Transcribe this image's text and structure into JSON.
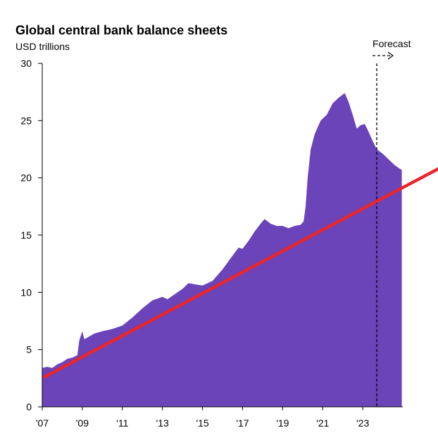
{
  "chart_data": {
    "type": "area",
    "title": "Global central bank balance sheets",
    "subtitle": "USD trillions",
    "xlabel": "",
    "ylabel": "",
    "ylim": [
      0,
      30
    ],
    "xlim": [
      2007.0,
      2025.0
    ],
    "y_ticks": [
      0,
      5,
      10,
      15,
      20,
      25,
      30
    ],
    "x_ticks": [
      {
        "x": 2007,
        "label": "'07"
      },
      {
        "x": 2009,
        "label": "'09"
      },
      {
        "x": 2011,
        "label": "'11"
      },
      {
        "x": 2013,
        "label": "'13"
      },
      {
        "x": 2015,
        "label": "'15"
      },
      {
        "x": 2017,
        "label": "'17"
      },
      {
        "x": 2019,
        "label": "'19"
      },
      {
        "x": 2021,
        "label": "'21"
      },
      {
        "x": 2023,
        "label": "'23"
      }
    ],
    "grid": false,
    "series": [
      {
        "color": "#6a44b8",
        "points": [
          [
            2007.0,
            3.4
          ],
          [
            2007.25,
            3.5
          ],
          [
            2007.5,
            3.4
          ],
          [
            2007.75,
            3.7
          ],
          [
            2008.0,
            3.9
          ],
          [
            2008.25,
            4.2
          ],
          [
            2008.5,
            4.3
          ],
          [
            2008.75,
            4.5
          ],
          [
            2008.85,
            5.8
          ],
          [
            2009.0,
            6.6
          ],
          [
            2009.1,
            5.9
          ],
          [
            2009.3,
            6.1
          ],
          [
            2009.6,
            6.4
          ],
          [
            2010.0,
            6.6
          ],
          [
            2010.5,
            6.8
          ],
          [
            2011.0,
            7.1
          ],
          [
            2011.5,
            7.8
          ],
          [
            2012.0,
            8.6
          ],
          [
            2012.5,
            9.3
          ],
          [
            2013.0,
            9.6
          ],
          [
            2013.25,
            9.4
          ],
          [
            2013.5,
            9.7
          ],
          [
            2014.0,
            10.3
          ],
          [
            2014.3,
            10.8
          ],
          [
            2014.6,
            10.7
          ],
          [
            2015.0,
            10.6
          ],
          [
            2015.5,
            11.0
          ],
          [
            2016.0,
            12.0
          ],
          [
            2016.5,
            13.2
          ],
          [
            2016.8,
            13.9
          ],
          [
            2017.0,
            13.8
          ],
          [
            2017.3,
            14.5
          ],
          [
            2017.6,
            15.3
          ],
          [
            2017.9,
            16.0
          ],
          [
            2018.1,
            16.4
          ],
          [
            2018.4,
            16.0
          ],
          [
            2018.7,
            15.8
          ],
          [
            2019.0,
            15.8
          ],
          [
            2019.3,
            15.6
          ],
          [
            2019.6,
            15.8
          ],
          [
            2019.9,
            15.9
          ],
          [
            2020.05,
            16.2
          ],
          [
            2020.15,
            17.5
          ],
          [
            2020.25,
            20.0
          ],
          [
            2020.4,
            22.5
          ],
          [
            2020.6,
            23.8
          ],
          [
            2020.9,
            25.0
          ],
          [
            2021.2,
            25.5
          ],
          [
            2021.5,
            26.5
          ],
          [
            2021.8,
            27.0
          ],
          [
            2022.1,
            27.4
          ],
          [
            2022.3,
            26.6
          ],
          [
            2022.5,
            25.5
          ],
          [
            2022.7,
            24.3
          ],
          [
            2022.9,
            24.6
          ],
          [
            2023.1,
            24.7
          ],
          [
            2023.3,
            24.0
          ],
          [
            2023.5,
            23.2
          ],
          [
            2023.7,
            22.5
          ],
          [
            2024.0,
            22.1
          ],
          [
            2024.3,
            21.6
          ],
          [
            2024.6,
            21.1
          ],
          [
            2024.85,
            20.8
          ],
          [
            2024.95,
            20.7
          ]
        ]
      }
    ],
    "annotations": [
      {
        "type": "vline",
        "x": 2023.7,
        "style": "dashed",
        "label": "Forecast"
      }
    ],
    "overlay_line": {
      "color": "#e8262b",
      "from": [
        2007.1,
        2.6
      ],
      "to": [
        2027.0,
        21.0
      ]
    }
  }
}
